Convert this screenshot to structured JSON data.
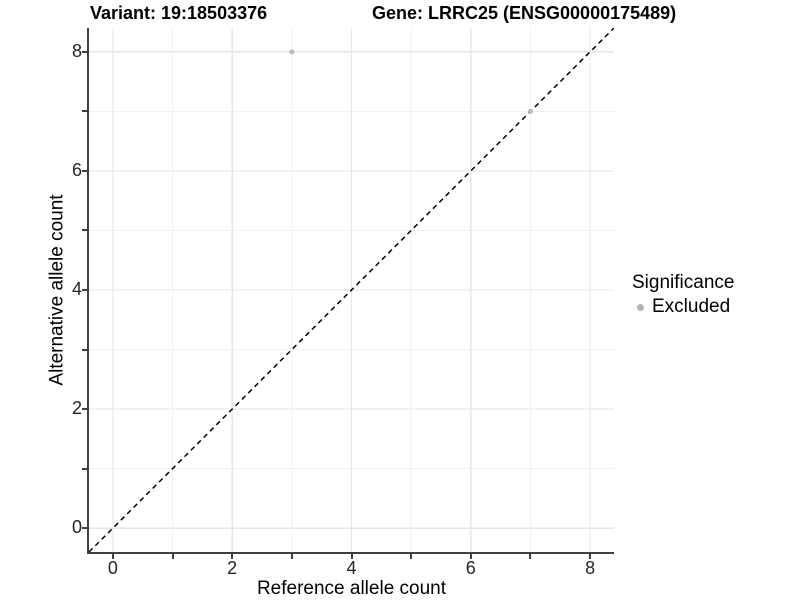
{
  "chart_data": {
    "type": "scatter",
    "title_left": "Variant: 19:18503376",
    "title_right": "Gene: LRRC25 (ENSG00000175489)",
    "xlabel": "Reference allele count",
    "ylabel": "Alternative allele count",
    "xlim": [
      -0.4,
      8.4
    ],
    "ylim": [
      -0.4,
      8.4
    ],
    "x_ticks": [
      0,
      2,
      4,
      6,
      8
    ],
    "y_ticks": [
      0,
      2,
      4,
      6,
      8
    ],
    "x_minor_ticks": [
      1,
      3,
      5,
      7
    ],
    "y_minor_ticks": [
      1,
      3,
      5,
      7
    ],
    "grid": "major+minor",
    "identity_line": {
      "style": "dashed",
      "equation": "y = x",
      "color": "#000000"
    },
    "series": [
      {
        "name": "Excluded",
        "color": "#bdbdbd",
        "points": [
          {
            "x": 3,
            "y": 8
          },
          {
            "x": 7,
            "y": 7
          }
        ]
      }
    ],
    "legend": {
      "title": "Significance",
      "position": "right",
      "entries": [
        {
          "label": "Excluded",
          "color": "#b3b3b3"
        }
      ]
    }
  },
  "colors": {
    "background": "#ffffff",
    "axis": "#404040",
    "grid_major": "#e6e6e6",
    "grid_minor": "#f2f2f2",
    "point": "#bdbdbd",
    "identity_line": "#000000",
    "tick_text": "#262626",
    "text": "#000000"
  }
}
